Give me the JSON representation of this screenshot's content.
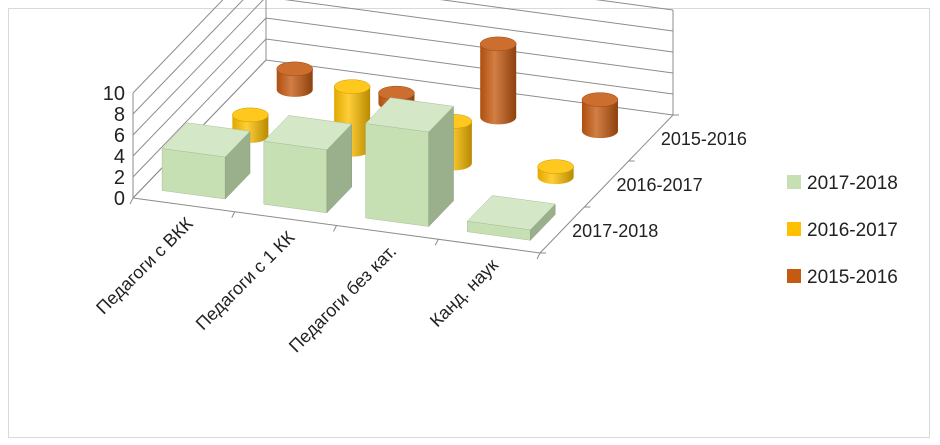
{
  "chart_data": {
    "type": "bar",
    "subtype": "3d-column",
    "title": "",
    "xlabel": "",
    "ylabel": "",
    "ylim": [
      0,
      10
    ],
    "y_ticks": [
      "0",
      "2",
      "4",
      "6",
      "8",
      "10"
    ],
    "categories": [
      "Педагоги с ВКК",
      "Педагоги с 1 КК",
      "Педагоги без кат.",
      "Канд. наук"
    ],
    "depth_labels": [
      "2015-2016",
      "2016-2017",
      "2017-2018"
    ],
    "series": [
      {
        "name": "2017-2018",
        "values": [
          4,
          6,
          9,
          1
        ],
        "color": "#c6e0b4",
        "shape": "box"
      },
      {
        "name": "2016-2017",
        "values": [
          2,
          6,
          4,
          1
        ],
        "color": "#ffc000",
        "shape": "cylinder"
      },
      {
        "name": "2015-2016",
        "values": [
          2,
          1,
          7,
          3
        ],
        "color": "#c55a11",
        "shape": "cylinder"
      }
    ],
    "legend_position": "right",
    "grid": true
  }
}
